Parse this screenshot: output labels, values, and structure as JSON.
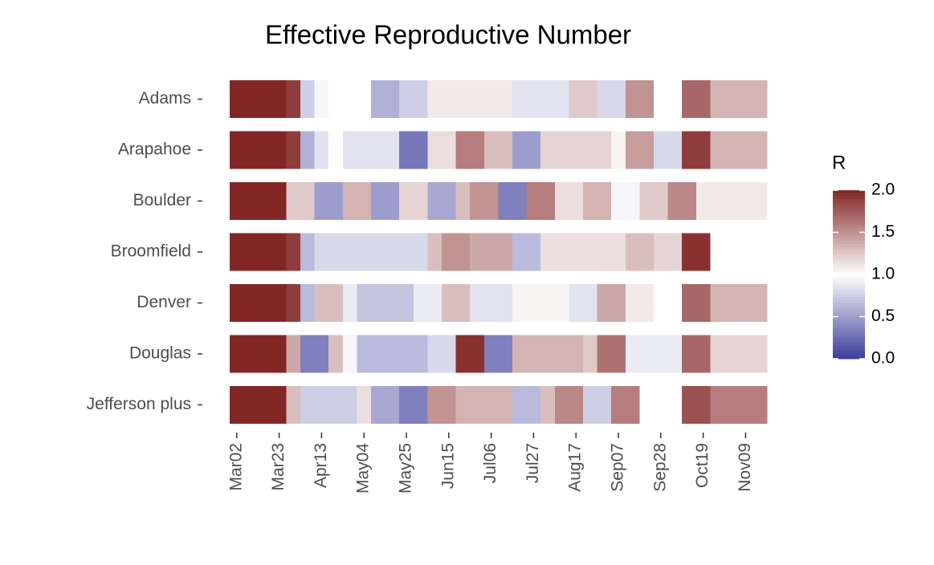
{
  "chart_data": {
    "type": "heatmap",
    "title": "Effective Reproductive Number",
    "x": [
      "Mar02",
      null,
      null,
      "Mar23",
      null,
      null,
      "Apr13",
      null,
      null,
      "May04",
      null,
      null,
      "May25",
      null,
      null,
      "Jun15",
      null,
      null,
      "Jul06",
      null,
      null,
      "Jul27",
      null,
      null,
      "Aug17",
      null,
      null,
      "Sep07",
      null,
      null,
      "Sep28",
      null,
      null,
      "Oct19",
      null,
      null,
      "Nov09",
      null
    ],
    "series": [
      {
        "name": "Adams",
        "values": [
          2,
          2,
          2,
          2,
          1.9,
          0.75,
          0.95,
          1.0,
          1.0,
          1.0,
          0.6,
          0.6,
          0.75,
          0.75,
          1.1,
          1.1,
          1.1,
          1.1,
          1.1,
          1.1,
          0.85,
          0.85,
          0.85,
          0.85,
          1.25,
          1.25,
          0.8,
          0.8,
          1.5,
          1.5,
          1.0,
          1.0,
          1.7,
          1.7,
          1.35,
          1.35,
          1.35,
          1.35
        ]
      },
      {
        "name": "Arapahoe",
        "values": [
          2,
          2,
          2,
          2,
          1.9,
          0.6,
          0.85,
          1.0,
          0.85,
          0.85,
          0.85,
          0.85,
          0.3,
          0.3,
          1.15,
          1.15,
          1.6,
          1.6,
          1.3,
          1.3,
          0.5,
          0.5,
          1.2,
          1.2,
          1.2,
          1.2,
          1.2,
          1.05,
          1.45,
          1.45,
          0.8,
          0.8,
          1.9,
          1.9,
          1.35,
          1.35,
          1.35,
          1.35
        ]
      },
      {
        "name": "Boulder",
        "values": [
          2,
          2,
          2,
          2,
          1.25,
          1.25,
          0.5,
          0.5,
          1.35,
          1.35,
          0.5,
          0.5,
          1.2,
          1.2,
          0.55,
          0.55,
          1.3,
          1.5,
          1.5,
          0.35,
          0.35,
          1.6,
          1.6,
          1.15,
          1.15,
          1.35,
          1.35,
          0.95,
          0.95,
          1.25,
          1.25,
          1.55,
          1.55,
          1.1,
          1.1,
          1.1,
          1.1,
          1.1
        ]
      },
      {
        "name": "Broomfield",
        "values": [
          2,
          2,
          2,
          2,
          1.9,
          0.65,
          0.8,
          0.8,
          0.8,
          0.8,
          0.8,
          0.8,
          0.8,
          0.8,
          1.3,
          1.5,
          1.5,
          1.4,
          1.4,
          1.4,
          0.65,
          0.65,
          1.15,
          1.15,
          1.15,
          1.15,
          1.15,
          1.15,
          1.3,
          1.3,
          1.2,
          1.2,
          1.95,
          1.95,
          1.0,
          1.0,
          1.0,
          1.0
        ]
      },
      {
        "name": "Denver",
        "values": [
          2,
          2,
          2,
          2,
          1.9,
          0.65,
          1.3,
          1.3,
          0.9,
          0.7,
          0.7,
          0.7,
          0.7,
          0.9,
          0.9,
          1.3,
          1.3,
          0.85,
          0.85,
          0.85,
          1.05,
          1.05,
          1.05,
          1.05,
          0.85,
          0.85,
          1.4,
          1.4,
          1.1,
          1.1,
          1.0,
          1.0,
          1.7,
          1.7,
          1.35,
          1.35,
          1.35,
          1.35
        ]
      },
      {
        "name": "Douglas",
        "values": [
          2,
          2,
          2,
          2,
          1.4,
          0.35,
          0.35,
          1.3,
          0.95,
          0.65,
          0.65,
          0.65,
          0.65,
          0.65,
          0.8,
          0.8,
          1.95,
          1.95,
          0.35,
          0.35,
          1.35,
          1.35,
          1.35,
          1.35,
          1.35,
          1.25,
          1.65,
          1.65,
          0.9,
          0.9,
          0.9,
          0.9,
          1.7,
          1.7,
          1.2,
          1.2,
          1.2,
          1.2
        ]
      },
      {
        "name": "Jefferson plus",
        "values": [
          2,
          2,
          2,
          2,
          1.3,
          0.75,
          0.75,
          0.75,
          0.75,
          1.15,
          0.55,
          0.55,
          0.35,
          0.35,
          1.5,
          1.5,
          1.35,
          1.35,
          1.35,
          1.35,
          0.65,
          0.65,
          1.3,
          1.55,
          1.55,
          0.75,
          0.75,
          1.6,
          1.6,
          1.0,
          1.0,
          1.0,
          1.8,
          1.8,
          1.6,
          1.6,
          1.6,
          1.6
        ]
      }
    ],
    "legend_title": "R",
    "zlim": [
      0,
      2
    ],
    "zticks": [
      {
        "value": 0,
        "label": "0.0"
      },
      {
        "value": 0.5,
        "label": "0.5"
      },
      {
        "value": 1,
        "label": "1.0"
      },
      {
        "value": 1.5,
        "label": "1.5"
      },
      {
        "value": 2,
        "label": "2.0"
      }
    ],
    "colorscale": {
      "low": "#3b3b9b",
      "mid": "#ffffff",
      "high": "#832626"
    }
  }
}
